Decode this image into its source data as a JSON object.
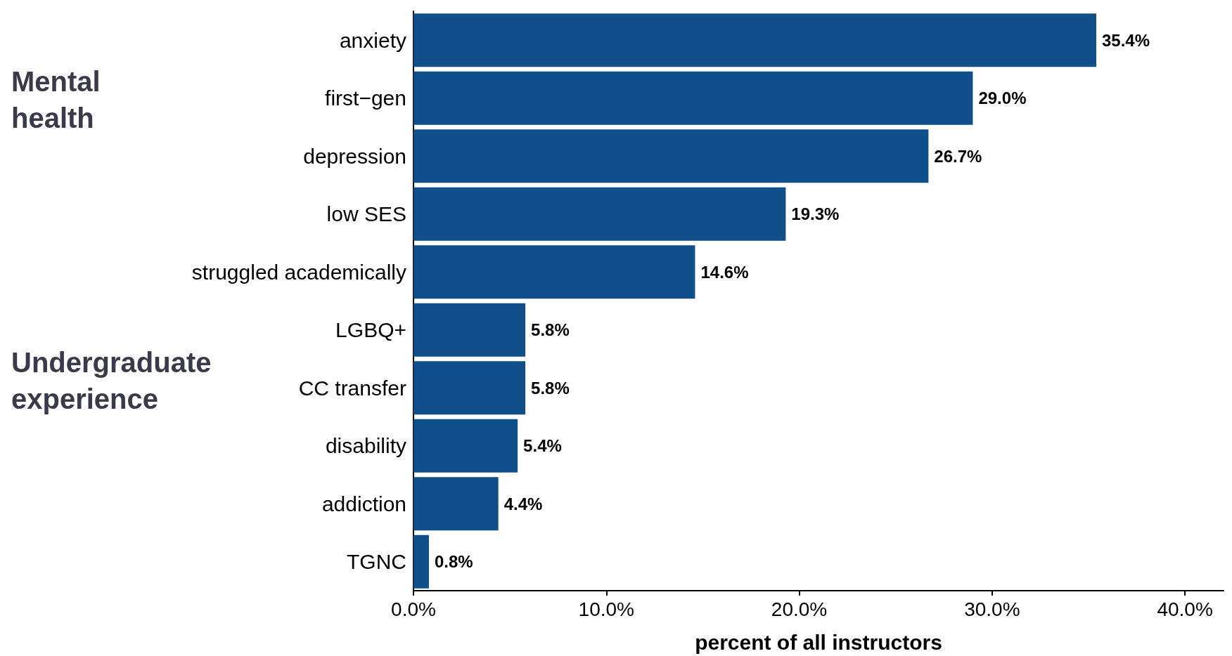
{
  "chart_data": {
    "type": "bar",
    "orientation": "horizontal",
    "xlabel": "percent of all instructors",
    "categories": [
      "anxiety",
      "first−gen",
      "depression",
      "low SES",
      "struggled academically",
      "LGBQ+",
      "CC transfer",
      "disability",
      "addiction",
      "TGNC"
    ],
    "values": [
      35.4,
      29.0,
      26.7,
      19.3,
      14.6,
      5.8,
      5.8,
      5.4,
      4.4,
      0.8
    ],
    "value_labels": [
      "35.4%",
      "29.0%",
      "26.7%",
      "19.3%",
      "14.6%",
      "5.8%",
      "5.8%",
      "5.4%",
      "4.4%",
      "0.8%"
    ],
    "color": "#114f8b",
    "xlim": [
      0,
      42
    ],
    "xticks": [
      {
        "value": 0,
        "label": "0.0%"
      },
      {
        "value": 10,
        "label": "10.0%"
      },
      {
        "value": 20,
        "label": "20.0%"
      },
      {
        "value": 30,
        "label": "30.0%"
      },
      {
        "value": 40,
        "label": "40.0%"
      }
    ],
    "grid": false,
    "annotations": [
      "Mental\nhealth",
      "Undergraduate\nexperience"
    ]
  }
}
